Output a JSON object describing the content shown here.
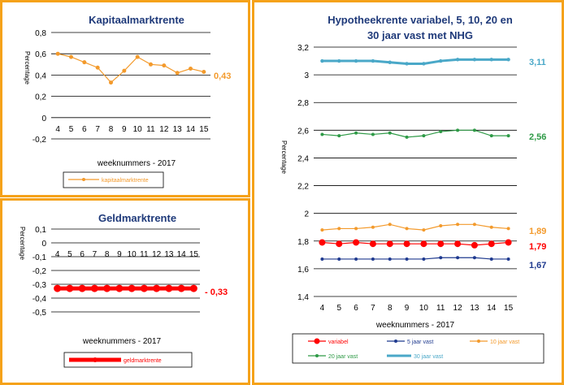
{
  "chart_data": [
    {
      "type": "line",
      "title": "Kapitaalmarktrente",
      "xlabel": "weeknummers - 2017",
      "ylabel": "Percentage",
      "x": [
        4,
        5,
        6,
        7,
        8,
        9,
        10,
        11,
        12,
        13,
        14,
        15
      ],
      "ylim": [
        -0.2,
        0.8
      ],
      "yticks": [
        "0,8",
        "0,6",
        "0,4",
        "0,2",
        "0",
        "-0,2"
      ],
      "series": [
        {
          "name": "kapitaalmarktrente",
          "color": "#f39a2c",
          "values": [
            0.6,
            0.57,
            0.52,
            0.47,
            0.33,
            0.44,
            0.57,
            0.5,
            0.49,
            0.42,
            0.46,
            0.43
          ]
        }
      ],
      "end_label": "0,43",
      "grid": true,
      "legend": "bottom"
    },
    {
      "type": "line",
      "title": "Geldmarktrente",
      "xlabel": "weeknummers - 2017",
      "ylabel": "Percentage",
      "x": [
        4,
        5,
        6,
        7,
        8,
        9,
        10,
        11,
        12,
        13,
        14,
        15
      ],
      "ylim": [
        -0.5,
        0.1
      ],
      "yticks": [
        "0,1",
        "0",
        "-0,1",
        "-0,2",
        "-0,3",
        "-0,4",
        "-0,5"
      ],
      "series": [
        {
          "name": "geldmarktrente",
          "color": "#ff0000",
          "values": [
            -0.33,
            -0.33,
            -0.33,
            -0.33,
            -0.33,
            -0.33,
            -0.33,
            -0.33,
            -0.33,
            -0.33,
            -0.33,
            -0.33
          ]
        }
      ],
      "end_label": "- 0,33",
      "grid": true,
      "legend": "bottom"
    },
    {
      "type": "line",
      "title": "Hypotheekrente variabel, 5, 10, 20 en 30 jaar vast met NHG",
      "title_lines": [
        "Hypotheekrente variabel, 5, 10, 20 en",
        "30 jaar vast met NHG"
      ],
      "xlabel": "weeknummers - 2017",
      "ylabel": "Percentage",
      "x": [
        4,
        5,
        6,
        7,
        8,
        9,
        10,
        11,
        12,
        13,
        14,
        15
      ],
      "ylim": [
        1.4,
        3.2
      ],
      "yticks": [
        "3,2",
        "3",
        "2,8",
        "2,6",
        "2,4",
        "2,2",
        "2",
        "1,8",
        "1,6",
        "1,4"
      ],
      "series": [
        {
          "name": "variabel",
          "color": "#ff0000",
          "values": [
            1.79,
            1.78,
            1.79,
            1.78,
            1.78,
            1.78,
            1.78,
            1.78,
            1.78,
            1.77,
            1.78,
            1.79
          ]
        },
        {
          "name": "5 jaar vast",
          "color": "#1f3a8f",
          "values": [
            1.67,
            1.67,
            1.67,
            1.67,
            1.67,
            1.67,
            1.67,
            1.68,
            1.68,
            1.68,
            1.67,
            1.67
          ]
        },
        {
          "name": "10 jaar vast",
          "color": "#f39a2c",
          "values": [
            1.88,
            1.89,
            1.89,
            1.9,
            1.92,
            1.89,
            1.88,
            1.91,
            1.92,
            1.92,
            1.9,
            1.89
          ]
        },
        {
          "name": "20 jaar vast",
          "color": "#2e9a46",
          "values": [
            2.57,
            2.56,
            2.58,
            2.57,
            2.58,
            2.55,
            2.56,
            2.59,
            2.6,
            2.6,
            2.56,
            2.56
          ]
        },
        {
          "name": "30 jaar vast",
          "color": "#4aa8c8",
          "values": [
            3.1,
            3.1,
            3.1,
            3.1,
            3.09,
            3.08,
            3.08,
            3.1,
            3.11,
            3.11,
            3.11,
            3.11
          ]
        }
      ],
      "end_labels": [
        "3,11",
        "2,56",
        "1,89",
        "1,79",
        "1,67"
      ],
      "grid": true,
      "legend": "bottom"
    }
  ]
}
